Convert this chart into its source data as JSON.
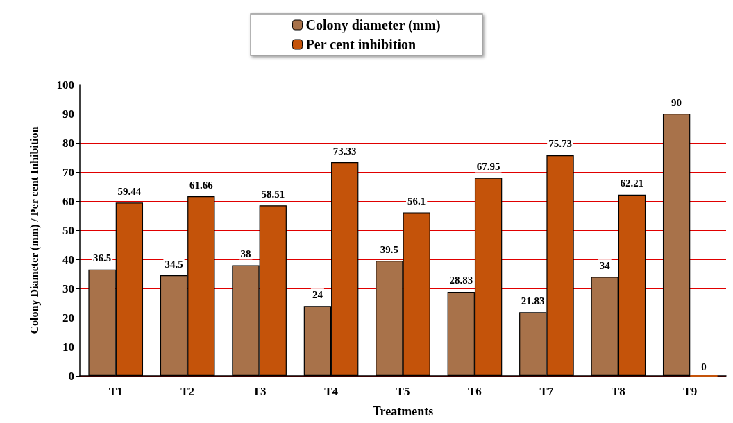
{
  "chart_data": {
    "type": "bar",
    "xlabel": "Treatments",
    "ylabel": "Colony Diameter (mm) / Per cent Inhibition",
    "categories": [
      "T1",
      "T2",
      "T3",
      "T4",
      "T5",
      "T6",
      "T7",
      "T8",
      "T9"
    ],
    "series": [
      {
        "name": "Colony diameter (mm)",
        "color": "#a8724a",
        "values": [
          36.5,
          34.5,
          38,
          24,
          39.5,
          28.83,
          21.83,
          34,
          90
        ]
      },
      {
        "name": "Per cent inhibition",
        "color": "#c4530a",
        "values": [
          59.44,
          61.66,
          58.51,
          73.33,
          56.1,
          67.95,
          75.73,
          62.21,
          0
        ]
      }
    ],
    "ylim": [
      0,
      100
    ],
    "yticks": [
      0,
      10,
      20,
      30,
      40,
      50,
      60,
      70,
      80,
      90,
      100
    ],
    "grid": "y",
    "legend": "top",
    "data_labels": true
  }
}
